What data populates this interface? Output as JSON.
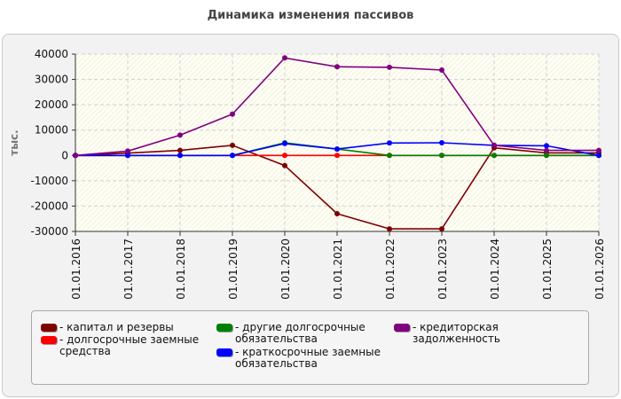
{
  "title": "Динамика изменения пассивов",
  "chart_data": {
    "type": "line",
    "title": "Динамика изменения пассивов",
    "ylabel": "тыс.",
    "xlabel": "",
    "ylim": [
      -30000,
      40000
    ],
    "yticks": [
      40000,
      30000,
      20000,
      10000,
      0,
      -10000,
      -20000,
      -30000
    ],
    "categories": [
      "01.01.2016",
      "01.01.2017",
      "01.01.2018",
      "01.01.2019",
      "01.01.2020",
      "01.01.2021",
      "01.01.2022",
      "01.01.2023",
      "01.01.2024",
      "01.01.2025",
      "01.01.2026"
    ],
    "grid": true,
    "legend_position": "bottom",
    "series": [
      {
        "name": "капитал и резервы",
        "color": "#800000",
        "values": [
          0,
          900,
          2000,
          4000,
          -4000,
          -23000,
          -29000,
          -29000,
          3000,
          1000,
          1000
        ]
      },
      {
        "name": "долгосрочные заемные средства",
        "color": "#ff0000",
        "values": [
          0,
          0,
          0,
          0,
          0,
          0,
          0,
          0,
          0,
          0,
          0
        ]
      },
      {
        "name": "другие долгосрочные обязательства",
        "color": "#008000",
        "values": [
          0,
          0,
          0,
          0,
          5000,
          2500,
          0,
          0,
          0,
          0,
          0
        ]
      },
      {
        "name": "краткосрочные заемные обязательства",
        "color": "#0000ff",
        "values": [
          0,
          0,
          0,
          0,
          4700,
          2500,
          4900,
          5000,
          4000,
          3800,
          0
        ]
      },
      {
        "name": "кредиторская задолженность",
        "color": "#800080",
        "values": [
          0,
          1700,
          8000,
          16300,
          38500,
          35000,
          34800,
          33700,
          4000,
          2000,
          2000
        ]
      }
    ]
  },
  "legend": {
    "items": [
      {
        "label_lines": [
          "капитал и резервы"
        ]
      },
      {
        "label_lines": [
          "долгосрочные заемные",
          "средства"
        ]
      },
      {
        "label_lines": [
          "другие долгосрочные",
          "обязательства"
        ]
      },
      {
        "label_lines": [
          "краткосрочные заемные",
          "обязательства"
        ]
      },
      {
        "label_lines": [
          "кредиторская задолженность"
        ]
      }
    ]
  }
}
